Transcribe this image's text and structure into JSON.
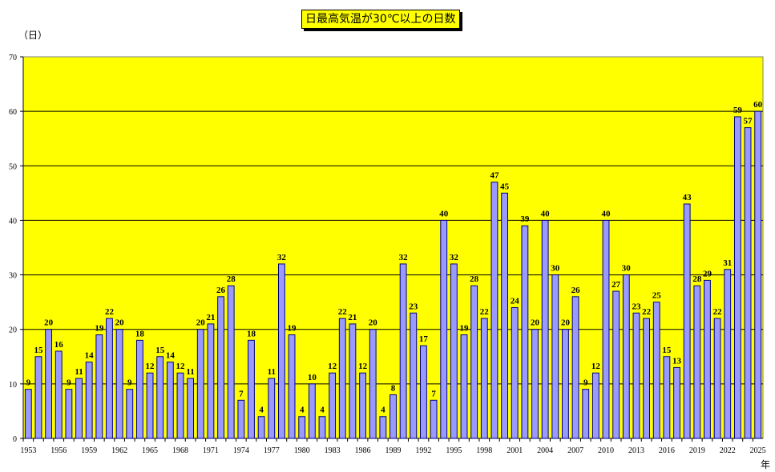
{
  "chart_data": {
    "type": "bar",
    "title": "日最高気温が30℃以上の日数",
    "ylabel": "（日）",
    "xlabel": "年",
    "ylim": [
      0,
      70
    ],
    "yticks": [
      0,
      10,
      20,
      30,
      40,
      50,
      60,
      70
    ],
    "grid": true,
    "plot_background": "#ffff00",
    "bar_color": "#9999ff",
    "years": [
      1953,
      1954,
      1955,
      1956,
      1957,
      1958,
      1959,
      1960,
      1961,
      1962,
      1963,
      1964,
      1965,
      1966,
      1967,
      1968,
      1969,
      1970,
      1971,
      1972,
      1973,
      1974,
      1975,
      1976,
      1977,
      1978,
      1979,
      1980,
      1981,
      1982,
      1983,
      1984,
      1985,
      1986,
      1987,
      1988,
      1989,
      1990,
      1991,
      1992,
      1993,
      1994,
      1995,
      1996,
      1997,
      1998,
      1999,
      2000,
      2001,
      2002,
      2003,
      2004,
      2005,
      2006,
      2007,
      2008,
      2009,
      2010,
      2011,
      2012,
      2013,
      2014,
      2015,
      2016,
      2017,
      2018,
      2019,
      2020,
      2021,
      2022,
      2023,
      2024,
      2025
    ],
    "values": [
      9,
      15,
      20,
      16,
      9,
      11,
      14,
      19,
      22,
      20,
      9,
      18,
      12,
      15,
      14,
      12,
      11,
      20,
      21,
      26,
      28,
      7,
      18,
      4,
      11,
      32,
      19,
      4,
      10,
      4,
      12,
      22,
      21,
      12,
      20,
      4,
      8,
      32,
      23,
      17,
      7,
      40,
      32,
      19,
      28,
      22,
      47,
      45,
      24,
      39,
      20,
      40,
      30,
      20,
      26,
      9,
      12,
      40,
      27,
      30,
      23,
      22,
      25,
      15,
      13,
      43,
      28,
      29,
      22,
      31,
      59,
      57,
      60
    ],
    "tick_labels": [
      "1953",
      "1956",
      "1959",
      "1962",
      "1965",
      "1968",
      "1971",
      "1974",
      "1977",
      "1980",
      "1983",
      "1986",
      "1989",
      "1992",
      "1995",
      "1998",
      "2001",
      "2004",
      "2007",
      "2010",
      "2013",
      "2016",
      "2019",
      "2022",
      "2025"
    ]
  }
}
